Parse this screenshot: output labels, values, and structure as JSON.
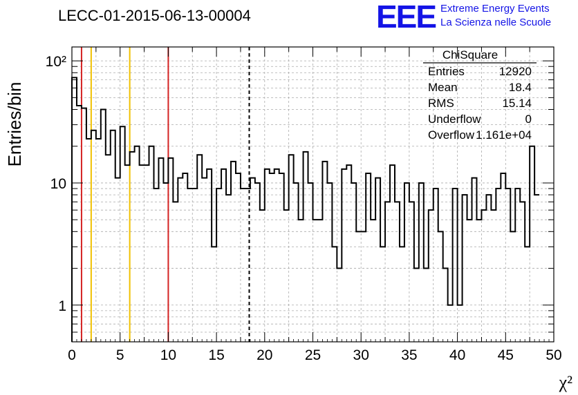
{
  "header": {
    "run_title": "LECC-01-2015-06-13-00004",
    "logo_text": "EEE",
    "logo_line1": "Extreme Energy Events",
    "logo_line2": "La Scienza nelle Scuole"
  },
  "stats_box": {
    "title": "ChiSquare",
    "rows": [
      {
        "label": "Entries",
        "value": "12920"
      },
      {
        "label": "Mean",
        "value": "18.4"
      },
      {
        "label": "RMS",
        "value": "15.14"
      },
      {
        "label": "Underflow",
        "value": "0"
      },
      {
        "label": "Overflow",
        "value": "1.161e+04"
      }
    ]
  },
  "chart_data": {
    "type": "histogram",
    "xlabel": "χ²",
    "ylabel": "Entries/bin",
    "xlim": [
      0,
      50
    ],
    "ylim": [
      0.5,
      130
    ],
    "y_scale": "log",
    "grid": true,
    "bin_width": 0.5,
    "x_ticks": [
      "0",
      "5",
      "10",
      "15",
      "20",
      "25",
      "30",
      "35",
      "40",
      "45",
      "50"
    ],
    "y_ticks": [
      {
        "value": 1,
        "label": "1"
      },
      {
        "value": 10,
        "label": "10"
      },
      {
        "value": 100,
        "label": "10²"
      }
    ],
    "values": [
      73,
      43,
      41,
      23,
      27,
      23,
      40,
      17,
      27,
      11,
      29,
      14,
      18,
      20,
      14,
      14,
      20,
      9,
      16,
      10,
      16,
      7,
      11,
      12,
      9,
      9,
      17,
      11,
      13,
      3,
      9,
      13,
      8,
      15,
      12,
      9,
      9,
      11,
      10,
      6,
      13,
      12,
      13,
      12,
      6,
      17,
      10,
      5,
      18,
      10,
      5,
      5,
      15,
      10,
      3,
      2,
      13,
      14,
      10,
      4,
      4,
      12,
      5,
      11,
      3,
      7,
      14,
      7,
      3,
      10,
      7,
      2,
      10,
      2,
      6,
      9,
      4,
      2,
      1,
      9,
      1,
      8,
      5,
      11,
      5,
      6,
      8,
      6,
      9,
      12,
      9,
      4,
      9,
      7,
      3,
      20,
      8
    ],
    "reference_lines": [
      {
        "x": 1,
        "style": "solid",
        "color": "#d42222"
      },
      {
        "x": 2,
        "style": "solid",
        "color": "#f0c000"
      },
      {
        "x": 6,
        "style": "solid",
        "color": "#f0c000"
      },
      {
        "x": 10,
        "style": "solid",
        "color": "#d42222"
      },
      {
        "x": 18.4,
        "style": "dashed",
        "color": "#000000"
      }
    ]
  }
}
